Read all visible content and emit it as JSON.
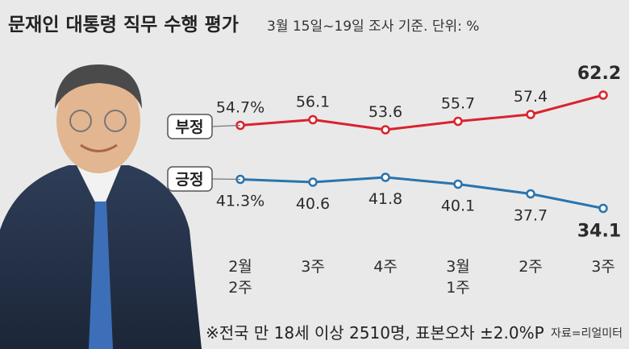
{
  "header": {
    "title": "문재인 대통령 직무 수행 평가",
    "subtitle": "3월 15일~19일 조사 기준. 단위: %"
  },
  "chart_data": {
    "type": "line",
    "categories": [
      [
        "2월",
        "2주"
      ],
      [
        "3주"
      ],
      [
        "4주"
      ],
      [
        "3월",
        "1주"
      ],
      [
        "2주"
      ],
      [
        "3주"
      ]
    ],
    "series": [
      {
        "name": "부정",
        "values": [
          54.7,
          56.1,
          53.6,
          55.7,
          57.4,
          62.2
        ],
        "labels": [
          "54.7%",
          "56.1",
          "53.6",
          "55.7",
          "57.4",
          "62.2"
        ],
        "color": "#d9232e"
      },
      {
        "name": "긍정",
        "values": [
          41.3,
          40.6,
          41.8,
          40.1,
          37.7,
          34.1
        ],
        "labels": [
          "41.3%",
          "40.6",
          "41.8",
          "40.1",
          "37.7",
          "34.1"
        ],
        "color": "#2a74ad"
      }
    ],
    "legend": "inline-left",
    "grid": false
  },
  "footer": {
    "note": "※전국 만 18세 이상 2510명, 표본오차 ±2.0%P",
    "source": "자료=리얼미터"
  },
  "colors": {
    "background": "#e9e9e9",
    "negative": "#d9232e",
    "positive": "#2a74ad",
    "text": "#333333"
  },
  "image": {
    "alt": "portrait photo"
  }
}
